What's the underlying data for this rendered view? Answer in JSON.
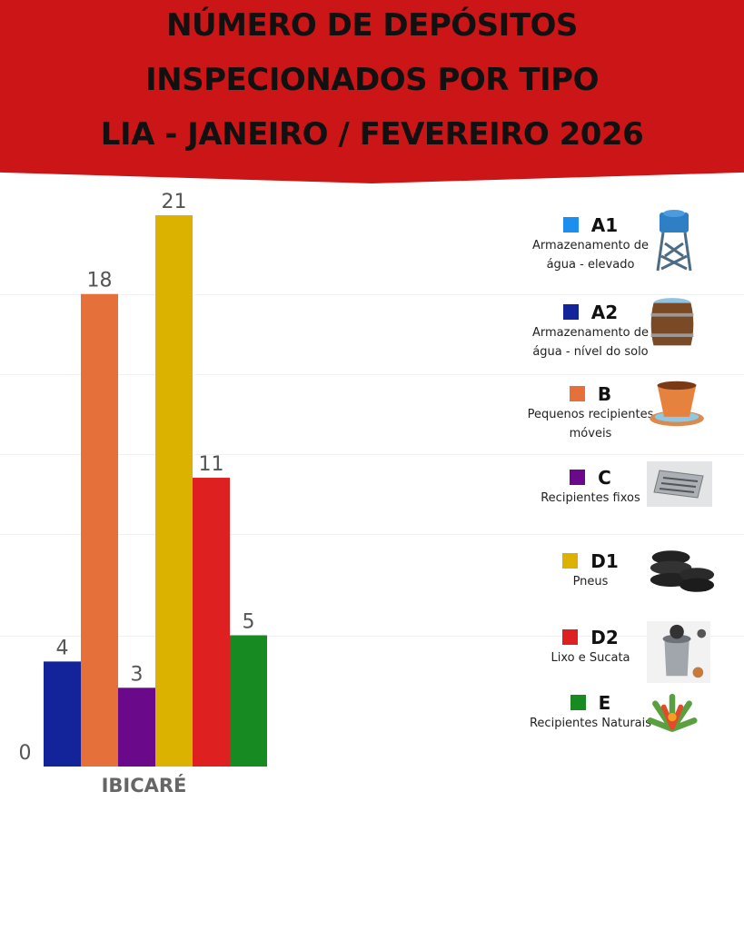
{
  "title": [
    "NÚMERO DE DEPÓSITOS",
    "INSPECIONADOS POR TIPO",
    "LIA - JANEIRO / FEVEREIRO 2026"
  ],
  "chart_data": {
    "type": "bar",
    "title": "NÚMERO DE DEPÓSITOS INSPECIONADOS POR TIPO - LIA - JANEIRO / FEVEREIRO 2026",
    "categories": [
      "IBICARÉ"
    ],
    "xlabel": "",
    "ylabel": "",
    "ylim": [
      0,
      21
    ],
    "grid": false,
    "legend": "right",
    "series": [
      {
        "name": "A1",
        "description": "Armazenamento de água - elevado",
        "color": "#1a8ff0",
        "values": [
          0
        ],
        "icon": "water-tower-icon"
      },
      {
        "name": "A2",
        "description": "Armazenamento de água - nível do solo",
        "color": "#13239a",
        "values": [
          4
        ],
        "icon": "barrel-icon"
      },
      {
        "name": "B",
        "description": "Pequenos recipientes móveis",
        "color": "#e5703a",
        "values": [
          18
        ],
        "icon": "flower-pot-icon"
      },
      {
        "name": "C",
        "description": "Recipientes fixos",
        "color": "#6a0a8a",
        "values": [
          3
        ],
        "icon": "drain-grate-icon"
      },
      {
        "name": "D1",
        "description": "Pneus",
        "color": "#dcb200",
        "values": [
          21
        ],
        "icon": "tires-icon"
      },
      {
        "name": "D2",
        "description": "Lixo e Sucata",
        "color": "#df2020",
        "values": [
          11
        ],
        "icon": "trash-can-icon"
      },
      {
        "name": "E",
        "description": "Recipientes Naturais",
        "color": "#178a22",
        "values": [
          5
        ],
        "icon": "bromeliad-icon"
      }
    ]
  }
}
